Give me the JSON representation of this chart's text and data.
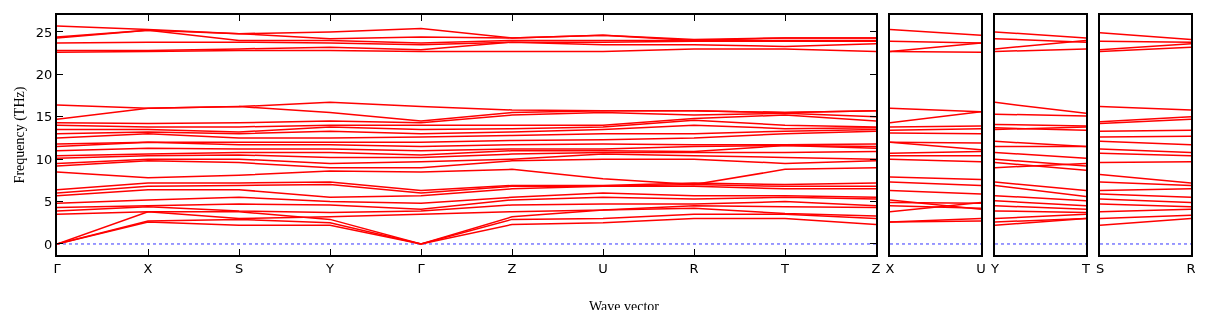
{
  "chart_data": [
    {
      "type": "line",
      "ylabel": "Frequency (THz)",
      "xlabel": "Wave vector",
      "categories": [
        "Γ",
        "X",
        "S",
        "Y",
        "Γ",
        "Z",
        "U",
        "R",
        "T",
        "Z"
      ],
      "ylim": [
        -1.3,
        27
      ],
      "yticks": [
        0,
        5,
        10,
        15,
        20,
        25
      ],
      "grid": false,
      "line_style": "solid",
      "ref_lines": [
        {
          "axis": "y",
          "value": 0,
          "color": "#0000ff",
          "line_style": "dotted"
        }
      ],
      "series": [
        {
          "color": "#ff0000",
          "values": [
            0,
            2.6,
            2.2,
            2.2,
            0,
            2.3,
            2.5,
            3.0,
            3.0,
            2.3
          ]
        },
        {
          "color": "#ff0000",
          "values": [
            0,
            2.7,
            2.9,
            2.5,
            0,
            2.9,
            3.0,
            3.5,
            3.5,
            3.0
          ]
        },
        {
          "color": "#ff0000",
          "values": [
            0,
            3.8,
            3.8,
            2.9,
            0,
            3.2,
            4.0,
            4.2,
            3.6,
            3.3
          ]
        },
        {
          "color": "#ff0000",
          "values": [
            3.5,
            3.8,
            3.0,
            3.2,
            3.5,
            3.8,
            4.0,
            4.5,
            4.4,
            4.3
          ]
        },
        {
          "color": "#ff0000",
          "values": [
            3.9,
            4.4,
            3.9,
            3.7,
            3.9,
            4.6,
            4.7,
            4.7,
            5.0,
            4.5
          ]
        },
        {
          "color": "#ff0000",
          "values": [
            4.3,
            4.5,
            4.7,
            4.6,
            4.1,
            5.2,
            5.5,
            5.3,
            5.5,
            5.3
          ]
        },
        {
          "color": "#ff0000",
          "values": [
            4.8,
            5.2,
            5.5,
            5.0,
            4.8,
            5.5,
            6.0,
            5.7,
            5.7,
            5.5
          ]
        },
        {
          "color": "#ff0000",
          "values": [
            5.7,
            6.4,
            6.4,
            5.5,
            5.7,
            6.5,
            6.8,
            6.8,
            6.5,
            6.5
          ]
        },
        {
          "color": "#ff0000",
          "values": [
            6.0,
            6.8,
            6.9,
            7.0,
            6.0,
            6.8,
            6.8,
            7.0,
            6.8,
            6.8
          ]
        },
        {
          "color": "#ff0000",
          "values": [
            6.4,
            7.2,
            7.2,
            7.3,
            6.3,
            6.9,
            6.9,
            7.2,
            7.0,
            7.2
          ]
        },
        {
          "color": "#ff0000",
          "values": [
            8.5,
            7.8,
            8.1,
            8.6,
            8.5,
            8.8,
            7.7,
            7.0,
            8.8,
            9.0
          ]
        },
        {
          "color": "#ff0000",
          "values": [
            9.2,
            9.8,
            9.6,
            9.0,
            9.0,
            9.8,
            10.0,
            10.0,
            9.5,
            9.8
          ]
        },
        {
          "color": "#ff0000",
          "values": [
            9.5,
            10.0,
            10.0,
            9.5,
            9.7,
            10.0,
            10.6,
            10.4,
            10.2,
            10.0
          ]
        },
        {
          "color": "#ff0000",
          "values": [
            10.1,
            10.4,
            10.5,
            10.2,
            10.2,
            10.6,
            10.8,
            10.8,
            10.8,
            10.9
          ]
        },
        {
          "color": "#ff0000",
          "values": [
            10.4,
            10.6,
            10.8,
            10.8,
            10.5,
            11.0,
            11.0,
            10.9,
            11.6,
            11.3
          ]
        },
        {
          "color": "#ff0000",
          "values": [
            11.0,
            11.3,
            11.2,
            11.2,
            11.0,
            11.2,
            11.2,
            11.5,
            11.6,
            11.5
          ]
        },
        {
          "color": "#ff0000",
          "values": [
            11.5,
            12.0,
            11.7,
            11.7,
            11.5,
            11.7,
            11.8,
            11.7,
            11.7,
            11.8
          ]
        },
        {
          "color": "#ff0000",
          "values": [
            11.8,
            12.0,
            12.0,
            12.0,
            12.0,
            12.2,
            12.3,
            12.5,
            13.0,
            13.3
          ]
        },
        {
          "color": "#ff0000",
          "values": [
            12.5,
            13.0,
            12.5,
            12.5,
            12.6,
            12.8,
            13.0,
            13.0,
            13.3,
            13.5
          ]
        },
        {
          "color": "#ff0000",
          "values": [
            13.0,
            13.2,
            13.0,
            13.3,
            13.0,
            13.2,
            13.5,
            14.0,
            13.6,
            13.7
          ]
        },
        {
          "color": "#ff0000",
          "values": [
            13.5,
            13.5,
            13.2,
            13.8,
            13.5,
            13.6,
            13.8,
            14.6,
            14.0,
            13.8
          ]
        },
        {
          "color": "#ff0000",
          "values": [
            14.0,
            13.8,
            13.8,
            14.0,
            14.0,
            14.0,
            14.0,
            14.8,
            15.2,
            14.5
          ]
        },
        {
          "color": "#ff0000",
          "values": [
            14.3,
            14.2,
            14.3,
            14.5,
            14.3,
            15.2,
            15.5,
            15.2,
            15.4,
            15.0
          ]
        },
        {
          "color": "#ff0000",
          "values": [
            14.7,
            16.0,
            16.2,
            15.5,
            14.5,
            15.5,
            15.7,
            15.7,
            15.5,
            15.7
          ]
        },
        {
          "color": "#ff0000",
          "values": [
            16.4,
            16.0,
            16.2,
            16.7,
            16.2,
            15.8,
            15.7,
            15.7,
            15.5,
            15.7
          ]
        },
        {
          "color": "#ff0000",
          "values": [
            22.6,
            22.7,
            22.8,
            22.8,
            22.7,
            22.7,
            22.7,
            23.0,
            23.0,
            22.7
          ]
        },
        {
          "color": "#ff0000",
          "values": [
            22.8,
            22.8,
            23.0,
            23.2,
            22.9,
            23.8,
            23.5,
            23.5,
            23.3,
            23.6
          ]
        },
        {
          "color": "#ff0000",
          "values": [
            23.7,
            23.8,
            23.8,
            23.7,
            23.5,
            23.8,
            23.8,
            23.9,
            23.9,
            23.9
          ]
        },
        {
          "color": "#ff0000",
          "values": [
            24.3,
            25.2,
            24.0,
            24.0,
            23.7,
            24.0,
            24.0,
            24.0,
            24.0,
            24.0
          ]
        },
        {
          "color": "#ff0000",
          "values": [
            25.7,
            25.3,
            24.8,
            24.2,
            24.4,
            24.3,
            24.6,
            24.0,
            24.3,
            24.3
          ]
        },
        {
          "color": "#ff0000",
          "values": [
            24.4,
            25.2,
            24.8,
            25.0,
            25.4,
            24.3,
            24.6,
            24.1,
            24.3,
            24.3
          ]
        }
      ]
    },
    {
      "type": "line",
      "categories": [
        "X",
        "U"
      ],
      "ylim": [
        -1.3,
        27
      ],
      "yticks": [
        0,
        5,
        10,
        15,
        20,
        25
      ],
      "tick_labels": "x",
      "line_style": "solid",
      "ref_lines": [
        {
          "axis": "y",
          "value": 0,
          "color": "#0000ff",
          "line_style": "dotted"
        }
      ],
      "series": [
        {
          "color": "#ff0000",
          "values": [
            25.3,
            24.6
          ]
        },
        {
          "color": "#ff0000",
          "values": [
            23.9,
            23.7
          ]
        },
        {
          "color": "#ff0000",
          "values": [
            22.7,
            23.7
          ]
        },
        {
          "color": "#ff0000",
          "values": [
            22.7,
            22.6
          ]
        },
        {
          "color": "#ff0000",
          "values": [
            16.0,
            15.6
          ]
        },
        {
          "color": "#ff0000",
          "values": [
            14.3,
            15.6
          ]
        },
        {
          "color": "#ff0000",
          "values": [
            13.8,
            13.9
          ]
        },
        {
          "color": "#ff0000",
          "values": [
            13.4,
            13.6
          ]
        },
        {
          "color": "#ff0000",
          "values": [
            13.1,
            13.0
          ]
        },
        {
          "color": "#ff0000",
          "values": [
            12.0,
            11.9
          ]
        },
        {
          "color": "#ff0000",
          "values": [
            12.0,
            11.1
          ]
        },
        {
          "color": "#ff0000",
          "values": [
            10.7,
            10.9
          ]
        },
        {
          "color": "#ff0000",
          "values": [
            10.4,
            10.4
          ]
        },
        {
          "color": "#ff0000",
          "values": [
            10.0,
            9.7
          ]
        },
        {
          "color": "#ff0000",
          "values": [
            7.9,
            7.6
          ]
        },
        {
          "color": "#ff0000",
          "values": [
            7.3,
            6.9
          ]
        },
        {
          "color": "#ff0000",
          "values": [
            6.3,
            5.9
          ]
        },
        {
          "color": "#ff0000",
          "values": [
            5.2,
            4.1
          ]
        },
        {
          "color": "#ff0000",
          "values": [
            4.9,
            4.8
          ]
        },
        {
          "color": "#ff0000",
          "values": [
            3.8,
            4.9
          ]
        },
        {
          "color": "#ff0000",
          "values": [
            4.5,
            4.2
          ]
        },
        {
          "color": "#ff0000",
          "values": [
            2.6,
            3.0
          ]
        },
        {
          "color": "#ff0000",
          "values": [
            2.6,
            2.7
          ]
        }
      ]
    },
    {
      "type": "line",
      "categories": [
        "Y",
        "T"
      ],
      "ylim": [
        -1.3,
        27
      ],
      "yticks": [
        0,
        5,
        10,
        15,
        20,
        25
      ],
      "tick_labels": "x",
      "line_style": "solid",
      "ref_lines": [
        {
          "axis": "y",
          "value": 0,
          "color": "#0000ff",
          "line_style": "dotted"
        }
      ],
      "series": [
        {
          "color": "#ff0000",
          "values": [
            25.0,
            24.3
          ]
        },
        {
          "color": "#ff0000",
          "values": [
            24.2,
            23.8
          ]
        },
        {
          "color": "#ff0000",
          "values": [
            23.0,
            24.0
          ]
        },
        {
          "color": "#ff0000",
          "values": [
            22.7,
            23.0
          ]
        },
        {
          "color": "#ff0000",
          "values": [
            16.7,
            15.4
          ]
        },
        {
          "color": "#ff0000",
          "values": [
            15.3,
            15.1
          ]
        },
        {
          "color": "#ff0000",
          "values": [
            14.1,
            13.9
          ]
        },
        {
          "color": "#ff0000",
          "values": [
            13.7,
            13.4
          ]
        },
        {
          "color": "#ff0000",
          "values": [
            13.5,
            13.8
          ]
        },
        {
          "color": "#ff0000",
          "values": [
            12.1,
            11.5
          ]
        },
        {
          "color": "#ff0000",
          "values": [
            11.5,
            11.5
          ]
        },
        {
          "color": "#ff0000",
          "values": [
            10.8,
            10.1
          ]
        },
        {
          "color": "#ff0000",
          "values": [
            10.0,
            9.2
          ]
        },
        {
          "color": "#ff0000",
          "values": [
            9.6,
            8.7
          ]
        },
        {
          "color": "#ff0000",
          "values": [
            9.0,
            9.5
          ]
        },
        {
          "color": "#ff0000",
          "values": [
            7.3,
            6.3
          ]
        },
        {
          "color": "#ff0000",
          "values": [
            6.9,
            5.6
          ]
        },
        {
          "color": "#ff0000",
          "values": [
            5.7,
            5.1
          ]
        },
        {
          "color": "#ff0000",
          "values": [
            5.1,
            4.5
          ]
        },
        {
          "color": "#ff0000",
          "values": [
            4.5,
            4.1
          ]
        },
        {
          "color": "#ff0000",
          "values": [
            3.9,
            3.7
          ]
        },
        {
          "color": "#ff0000",
          "values": [
            3.0,
            3.5
          ]
        },
        {
          "color": "#ff0000",
          "values": [
            2.6,
            3.0
          ]
        },
        {
          "color": "#ff0000",
          "values": [
            2.2,
            3.0
          ]
        }
      ]
    },
    {
      "type": "line",
      "categories": [
        "S",
        "R"
      ],
      "ylim": [
        -1.3,
        27
      ],
      "yticks": [
        0,
        5,
        10,
        15,
        20,
        25
      ],
      "tick_labels": "x",
      "line_style": "solid",
      "ref_lines": [
        {
          "axis": "y",
          "value": 0,
          "color": "#0000ff",
          "line_style": "dotted"
        }
      ],
      "series": [
        {
          "color": "#ff0000",
          "values": [
            24.9,
            24.1
          ]
        },
        {
          "color": "#ff0000",
          "values": [
            23.9,
            23.8
          ]
        },
        {
          "color": "#ff0000",
          "values": [
            22.9,
            23.6
          ]
        },
        {
          "color": "#ff0000",
          "values": [
            22.7,
            23.2
          ]
        },
        {
          "color": "#ff0000",
          "values": [
            16.2,
            15.8
          ]
        },
        {
          "color": "#ff0000",
          "values": [
            14.4,
            15.0
          ]
        },
        {
          "color": "#ff0000",
          "values": [
            14.2,
            14.7
          ]
        },
        {
          "color": "#ff0000",
          "values": [
            13.3,
            13.4
          ]
        },
        {
          "color": "#ff0000",
          "values": [
            12.6,
            12.7
          ]
        },
        {
          "color": "#ff0000",
          "values": [
            12.1,
            11.7
          ]
        },
        {
          "color": "#ff0000",
          "values": [
            11.2,
            10.8
          ]
        },
        {
          "color": "#ff0000",
          "values": [
            10.7,
            10.4
          ]
        },
        {
          "color": "#ff0000",
          "values": [
            9.6,
            9.7
          ]
        },
        {
          "color": "#ff0000",
          "values": [
            8.2,
            7.2
          ]
        },
        {
          "color": "#ff0000",
          "values": [
            7.3,
            6.9
          ]
        },
        {
          "color": "#ff0000",
          "values": [
            6.3,
            6.5
          ]
        },
        {
          "color": "#ff0000",
          "values": [
            5.9,
            5.5
          ]
        },
        {
          "color": "#ff0000",
          "values": [
            5.3,
            4.9
          ]
        },
        {
          "color": "#ff0000",
          "values": [
            4.7,
            4.4
          ]
        },
        {
          "color": "#ff0000",
          "values": [
            3.8,
            4.1
          ]
        },
        {
          "color": "#ff0000",
          "values": [
            3.0,
            3.4
          ]
        },
        {
          "color": "#ff0000",
          "values": [
            2.2,
            3.0
          ]
        }
      ]
    }
  ]
}
